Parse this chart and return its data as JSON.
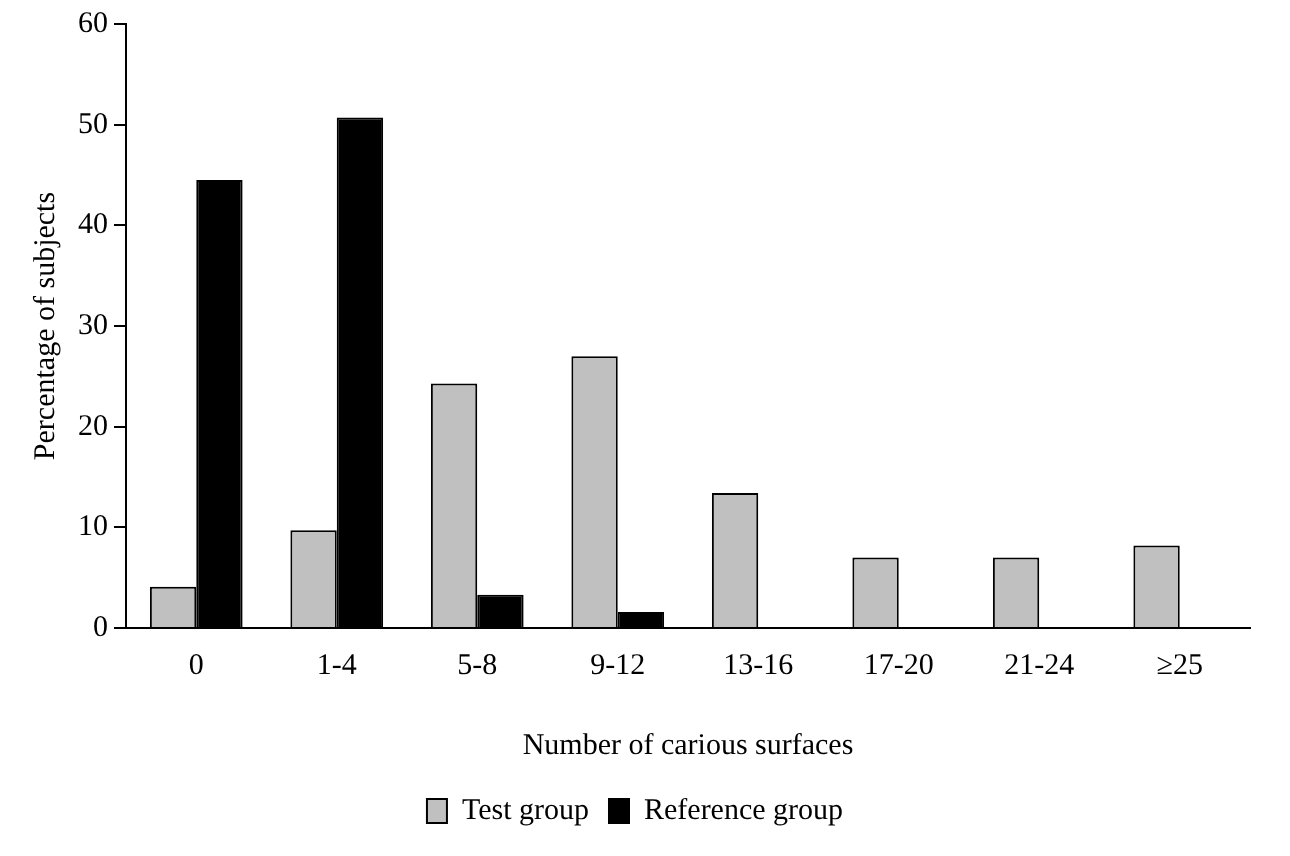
{
  "chart_data": {
    "type": "bar",
    "xlabel": "Number of carious surfaces",
    "ylabel": "Percentage of subjects",
    "categories": [
      "0",
      "1-4",
      "5-8",
      "9-12",
      "13-16",
      "17-20",
      "21-24",
      "≥25"
    ],
    "series": [
      {
        "name": "Test group",
        "color": "#c0c0c0",
        "values": [
          4.1,
          9.7,
          24.3,
          27,
          13.4,
          7,
          7,
          8.2
        ]
      },
      {
        "name": "Reference group",
        "color": "#000000",
        "values": [
          44.5,
          50.7,
          3.3,
          1.6,
          0,
          0,
          0,
          0
        ]
      }
    ],
    "ylim": [
      0,
      60
    ],
    "yticks": [
      0,
      10,
      20,
      30,
      40,
      50,
      60
    ],
    "grid": false,
    "legend": "bottom"
  }
}
